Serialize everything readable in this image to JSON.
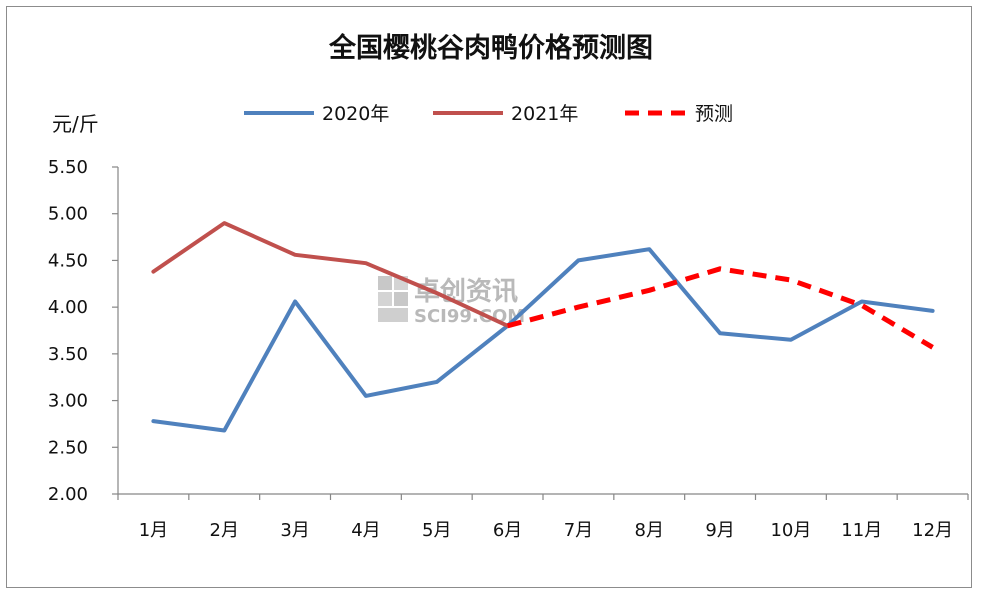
{
  "chart_data": {
    "type": "line",
    "title": "全国樱桃谷肉鸭价格预测图",
    "ylabel": "元/斤",
    "xlabel": "",
    "categories": [
      "1月",
      "2月",
      "3月",
      "4月",
      "5月",
      "6月",
      "7月",
      "8月",
      "9月",
      "10月",
      "11月",
      "12月"
    ],
    "ylim": [
      2.0,
      5.5
    ],
    "yticks": [
      "5.50",
      "5.00",
      "4.50",
      "4.00",
      "3.50",
      "3.00",
      "2.50",
      "2.00"
    ],
    "grid": false,
    "legend_position": "top",
    "series": [
      {
        "name": "2020年",
        "color": "#4f81bd",
        "dash": false,
        "values": [
          2.78,
          2.68,
          4.06,
          3.05,
          3.2,
          3.8,
          4.5,
          4.62,
          3.72,
          3.65,
          4.06,
          3.96
        ]
      },
      {
        "name": "2021年",
        "color": "#c0504d",
        "dash": false,
        "values": [
          4.38,
          4.9,
          4.56,
          4.47,
          4.15,
          3.8,
          null,
          null,
          null,
          null,
          null,
          null
        ]
      },
      {
        "name": "预测",
        "color": "#ff0000",
        "dash": true,
        "values": [
          null,
          null,
          null,
          null,
          null,
          3.8,
          4.0,
          4.18,
          4.41,
          4.29,
          4.02,
          3.57
        ]
      }
    ]
  },
  "watermark": {
    "cn": "卓创资讯",
    "en": "SCI99.COM"
  }
}
